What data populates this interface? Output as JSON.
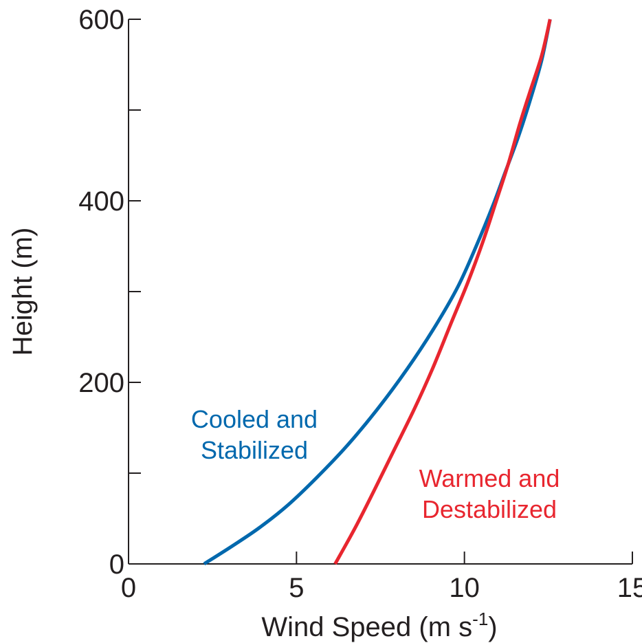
{
  "chart_data": {
    "type": "line",
    "title": "",
    "xlabel": "Wind Speed (m s",
    "xlabel_sup": "-1",
    "xlabel_close": ")",
    "ylabel": "Height (m)",
    "xlim": [
      0,
      15
    ],
    "ylim": [
      0,
      600
    ],
    "xticks": [
      0,
      5,
      10,
      15
    ],
    "yticks": [
      0,
      100,
      200,
      300,
      400,
      500,
      600
    ],
    "ytick_labels": [
      "0",
      "",
      "200",
      "",
      "400",
      "",
      "600"
    ],
    "xtick_labels": [
      "0",
      "5",
      "10",
      "15"
    ],
    "grid": false,
    "series": [
      {
        "name": "Cooled and Stabilized",
        "color": "#0068ad",
        "x": [
          2.25,
          3.1,
          3.9,
          4.75,
          5.6,
          6.5,
          7.4,
          8.3,
          9.1,
          9.8,
          10.35,
          10.85,
          11.2,
          11.6,
          11.95,
          12.3,
          12.55
        ],
        "y": [
          0,
          20,
          40,
          65,
          95,
          130,
          170,
          215,
          260,
          305,
          350,
          395,
          430,
          470,
          510,
          555,
          600
        ]
      },
      {
        "name": "Warmed and Destabilized",
        "color": "#e8262f",
        "x": [
          6.15,
          6.75,
          7.3,
          7.9,
          8.5,
          9.05,
          9.6,
          10.1,
          10.55,
          10.95,
          11.3,
          11.65,
          11.95,
          12.3,
          12.55
        ],
        "y": [
          0,
          40,
          80,
          125,
          170,
          215,
          265,
          310,
          355,
          400,
          440,
          485,
          520,
          560,
          600
        ]
      }
    ],
    "annotations": [
      {
        "lines": [
          "Cooled and",
          "Stabilized"
        ],
        "color": "#0068ad"
      },
      {
        "lines": [
          "Warmed and",
          "Destabilized"
        ],
        "color": "#e8262f"
      }
    ]
  }
}
